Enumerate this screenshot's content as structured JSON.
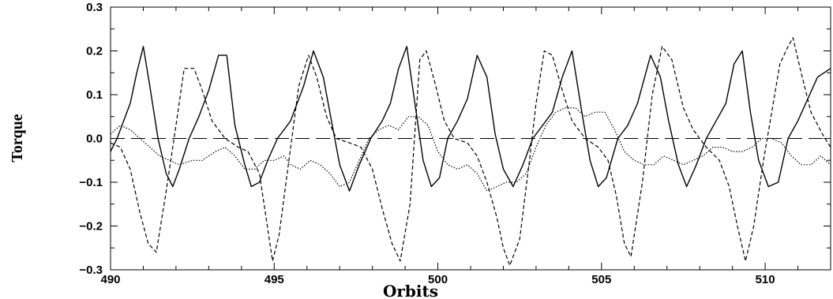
{
  "chart_data": {
    "type": "line",
    "xlabel": "Orbits",
    "ylabel": "Torque",
    "xlim": [
      490,
      512
    ],
    "ylim": [
      -0.3,
      0.3
    ],
    "x_ticks": [
      490,
      495,
      500,
      505,
      510
    ],
    "y_ticks": [
      -0.3,
      -0.2,
      -0.1,
      0.0,
      0.1,
      0.2,
      0.3
    ],
    "x_tick_labels": [
      "490",
      "495",
      "500",
      "505",
      "510"
    ],
    "y_tick_labels": [
      "−0.3",
      "−0.2",
      "−0.1",
      "0.0",
      "0.1",
      "0.2",
      "0.3"
    ],
    "grid": false,
    "reference_line": {
      "y": 0.0,
      "style": "long-dash"
    },
    "series": [
      {
        "style": "solid",
        "points": [
          [
            490.0,
            -0.03
          ],
          [
            490.2,
            0.0
          ],
          [
            490.4,
            0.04
          ],
          [
            490.6,
            0.08
          ],
          [
            490.8,
            0.15
          ],
          [
            491.0,
            0.21
          ],
          [
            491.2,
            0.12
          ],
          [
            491.45,
            0.0
          ],
          [
            491.7,
            -0.08
          ],
          [
            491.9,
            -0.11
          ],
          [
            492.1,
            -0.07
          ],
          [
            492.4,
            0.0
          ],
          [
            492.7,
            0.05
          ],
          [
            493.0,
            0.11
          ],
          [
            493.3,
            0.19
          ],
          [
            493.55,
            0.19
          ],
          [
            493.8,
            0.03
          ],
          [
            494.1,
            -0.06
          ],
          [
            494.3,
            -0.11
          ],
          [
            494.55,
            -0.1
          ],
          [
            494.8,
            -0.05
          ],
          [
            495.1,
            0.0
          ],
          [
            495.5,
            0.04
          ],
          [
            495.9,
            0.12
          ],
          [
            496.2,
            0.2
          ],
          [
            496.5,
            0.14
          ],
          [
            496.75,
            0.04
          ],
          [
            497.0,
            -0.06
          ],
          [
            497.3,
            -0.12
          ],
          [
            497.6,
            -0.06
          ],
          [
            497.95,
            0.0
          ],
          [
            498.3,
            0.04
          ],
          [
            498.55,
            0.08
          ],
          [
            498.8,
            0.16
          ],
          [
            499.05,
            0.21
          ],
          [
            499.3,
            0.08
          ],
          [
            499.55,
            -0.05
          ],
          [
            499.8,
            -0.11
          ],
          [
            500.05,
            -0.09
          ],
          [
            500.3,
            0.0
          ],
          [
            500.6,
            0.04
          ],
          [
            500.9,
            0.09
          ],
          [
            501.2,
            0.19
          ],
          [
            501.5,
            0.14
          ],
          [
            501.75,
            0.01
          ],
          [
            502.0,
            -0.07
          ],
          [
            502.3,
            -0.11
          ],
          [
            502.6,
            -0.06
          ],
          [
            502.9,
            0.0
          ],
          [
            503.2,
            0.03
          ],
          [
            503.5,
            0.06
          ],
          [
            503.8,
            0.14
          ],
          [
            504.1,
            0.2
          ],
          [
            504.4,
            0.06
          ],
          [
            504.65,
            -0.05
          ],
          [
            504.9,
            -0.11
          ],
          [
            505.15,
            -0.09
          ],
          [
            505.5,
            0.0
          ],
          [
            505.8,
            0.03
          ],
          [
            506.1,
            0.08
          ],
          [
            506.5,
            0.19
          ],
          [
            506.8,
            0.14
          ],
          [
            507.05,
            0.04
          ],
          [
            507.35,
            -0.06
          ],
          [
            507.6,
            -0.11
          ],
          [
            507.9,
            -0.06
          ],
          [
            508.2,
            0.0
          ],
          [
            508.5,
            0.04
          ],
          [
            508.8,
            0.08
          ],
          [
            509.05,
            0.17
          ],
          [
            509.3,
            0.2
          ],
          [
            509.55,
            0.06
          ],
          [
            509.8,
            -0.05
          ],
          [
            510.1,
            -0.11
          ],
          [
            510.4,
            -0.1
          ],
          [
            510.7,
            0.0
          ],
          [
            511.0,
            0.04
          ],
          [
            511.3,
            0.09
          ],
          [
            511.6,
            0.14
          ],
          [
            512.0,
            0.16
          ]
        ]
      },
      {
        "style": "dashed",
        "points": [
          [
            490.0,
            -0.01
          ],
          [
            490.3,
            -0.02
          ],
          [
            490.6,
            -0.07
          ],
          [
            490.9,
            -0.17
          ],
          [
            491.15,
            -0.24
          ],
          [
            491.4,
            -0.26
          ],
          [
            491.7,
            -0.12
          ],
          [
            492.0,
            0.03
          ],
          [
            492.25,
            0.16
          ],
          [
            492.55,
            0.16
          ],
          [
            492.8,
            0.11
          ],
          [
            493.1,
            0.04
          ],
          [
            493.5,
            0.0
          ],
          [
            493.9,
            -0.02
          ],
          [
            494.2,
            -0.03
          ],
          [
            494.55,
            -0.08
          ],
          [
            494.75,
            -0.18
          ],
          [
            494.95,
            -0.28
          ],
          [
            495.15,
            -0.22
          ],
          [
            495.45,
            -0.05
          ],
          [
            495.75,
            0.12
          ],
          [
            496.05,
            0.19
          ],
          [
            496.3,
            0.14
          ],
          [
            496.6,
            0.05
          ],
          [
            496.9,
            0.0
          ],
          [
            497.3,
            -0.01
          ],
          [
            497.65,
            -0.02
          ],
          [
            498.0,
            -0.07
          ],
          [
            498.3,
            -0.16
          ],
          [
            498.6,
            -0.24
          ],
          [
            498.85,
            -0.28
          ],
          [
            499.15,
            -0.15
          ],
          [
            499.45,
            0.18
          ],
          [
            499.65,
            0.2
          ],
          [
            499.9,
            0.13
          ],
          [
            500.2,
            0.04
          ],
          [
            500.5,
            0.0
          ],
          [
            500.9,
            -0.01
          ],
          [
            501.2,
            -0.04
          ],
          [
            501.5,
            -0.1
          ],
          [
            501.8,
            -0.18
          ],
          [
            502.0,
            -0.25
          ],
          [
            502.2,
            -0.29
          ],
          [
            502.5,
            -0.23
          ],
          [
            502.8,
            -0.05
          ],
          [
            503.0,
            0.08
          ],
          [
            503.25,
            0.2
          ],
          [
            503.5,
            0.19
          ],
          [
            503.8,
            0.11
          ],
          [
            504.1,
            0.04
          ],
          [
            504.5,
            0.0
          ],
          [
            504.9,
            -0.02
          ],
          [
            505.2,
            -0.05
          ],
          [
            505.45,
            -0.13
          ],
          [
            505.7,
            -0.24
          ],
          [
            505.9,
            -0.27
          ],
          [
            506.25,
            -0.1
          ],
          [
            506.55,
            0.1
          ],
          [
            506.85,
            0.21
          ],
          [
            507.15,
            0.18
          ],
          [
            507.5,
            0.07
          ],
          [
            507.8,
            0.02
          ],
          [
            508.2,
            -0.02
          ],
          [
            508.6,
            -0.05
          ],
          [
            508.9,
            -0.11
          ],
          [
            509.15,
            -0.2
          ],
          [
            509.4,
            -0.28
          ],
          [
            509.65,
            -0.2
          ],
          [
            509.95,
            -0.05
          ],
          [
            510.2,
            0.06
          ],
          [
            510.45,
            0.17
          ],
          [
            510.7,
            0.21
          ],
          [
            510.85,
            0.23
          ],
          [
            511.1,
            0.15
          ],
          [
            511.4,
            0.06
          ],
          [
            511.75,
            0.01
          ],
          [
            512.0,
            -0.02
          ]
        ]
      },
      {
        "style": "dotted",
        "points": [
          [
            490.0,
            0.01
          ],
          [
            490.3,
            0.03
          ],
          [
            490.6,
            0.02
          ],
          [
            490.9,
            0.0
          ],
          [
            491.2,
            -0.02
          ],
          [
            491.5,
            -0.04
          ],
          [
            491.8,
            -0.05
          ],
          [
            492.1,
            -0.06
          ],
          [
            492.5,
            -0.05
          ],
          [
            492.8,
            -0.05
          ],
          [
            493.2,
            -0.03
          ],
          [
            493.5,
            -0.02
          ],
          [
            493.8,
            -0.04
          ],
          [
            494.1,
            -0.07
          ],
          [
            494.4,
            -0.07
          ],
          [
            494.7,
            -0.05
          ],
          [
            495.0,
            -0.05
          ],
          [
            495.3,
            -0.04
          ],
          [
            495.5,
            -0.06
          ],
          [
            495.8,
            -0.07
          ],
          [
            496.1,
            -0.05
          ],
          [
            496.4,
            -0.06
          ],
          [
            496.7,
            -0.08
          ],
          [
            497.0,
            -0.11
          ],
          [
            497.3,
            -0.1
          ],
          [
            497.6,
            -0.05
          ],
          [
            497.9,
            0.0
          ],
          [
            498.2,
            0.02
          ],
          [
            498.5,
            0.03
          ],
          [
            498.8,
            0.02
          ],
          [
            499.1,
            0.05
          ],
          [
            499.4,
            0.05
          ],
          [
            499.7,
            0.03
          ],
          [
            500.0,
            -0.03
          ],
          [
            500.3,
            -0.06
          ],
          [
            500.6,
            -0.07
          ],
          [
            500.9,
            -0.06
          ],
          [
            501.2,
            -0.08
          ],
          [
            501.5,
            -0.12
          ],
          [
            501.8,
            -0.11
          ],
          [
            502.1,
            -0.1
          ],
          [
            502.4,
            -0.1
          ],
          [
            502.7,
            -0.08
          ],
          [
            503.0,
            -0.02
          ],
          [
            503.3,
            0.03
          ],
          [
            503.6,
            0.06
          ],
          [
            503.9,
            0.07
          ],
          [
            504.2,
            0.07
          ],
          [
            504.5,
            0.05
          ],
          [
            504.8,
            0.06
          ],
          [
            505.1,
            0.06
          ],
          [
            505.4,
            0.02
          ],
          [
            505.7,
            -0.03
          ],
          [
            506.0,
            -0.05
          ],
          [
            506.3,
            -0.06
          ],
          [
            506.6,
            -0.06
          ],
          [
            506.9,
            -0.04
          ],
          [
            507.2,
            -0.05
          ],
          [
            507.5,
            -0.06
          ],
          [
            507.8,
            -0.05
          ],
          [
            508.1,
            -0.04
          ],
          [
            508.4,
            -0.02
          ],
          [
            508.7,
            -0.02
          ],
          [
            509.0,
            -0.03
          ],
          [
            509.3,
            -0.03
          ],
          [
            509.6,
            -0.02
          ],
          [
            509.9,
            0.0
          ],
          [
            510.2,
            0.0
          ],
          [
            510.5,
            -0.01
          ],
          [
            510.8,
            -0.04
          ],
          [
            511.1,
            -0.06
          ],
          [
            511.4,
            -0.06
          ],
          [
            511.7,
            -0.04
          ],
          [
            512.0,
            -0.06
          ]
        ]
      }
    ]
  }
}
